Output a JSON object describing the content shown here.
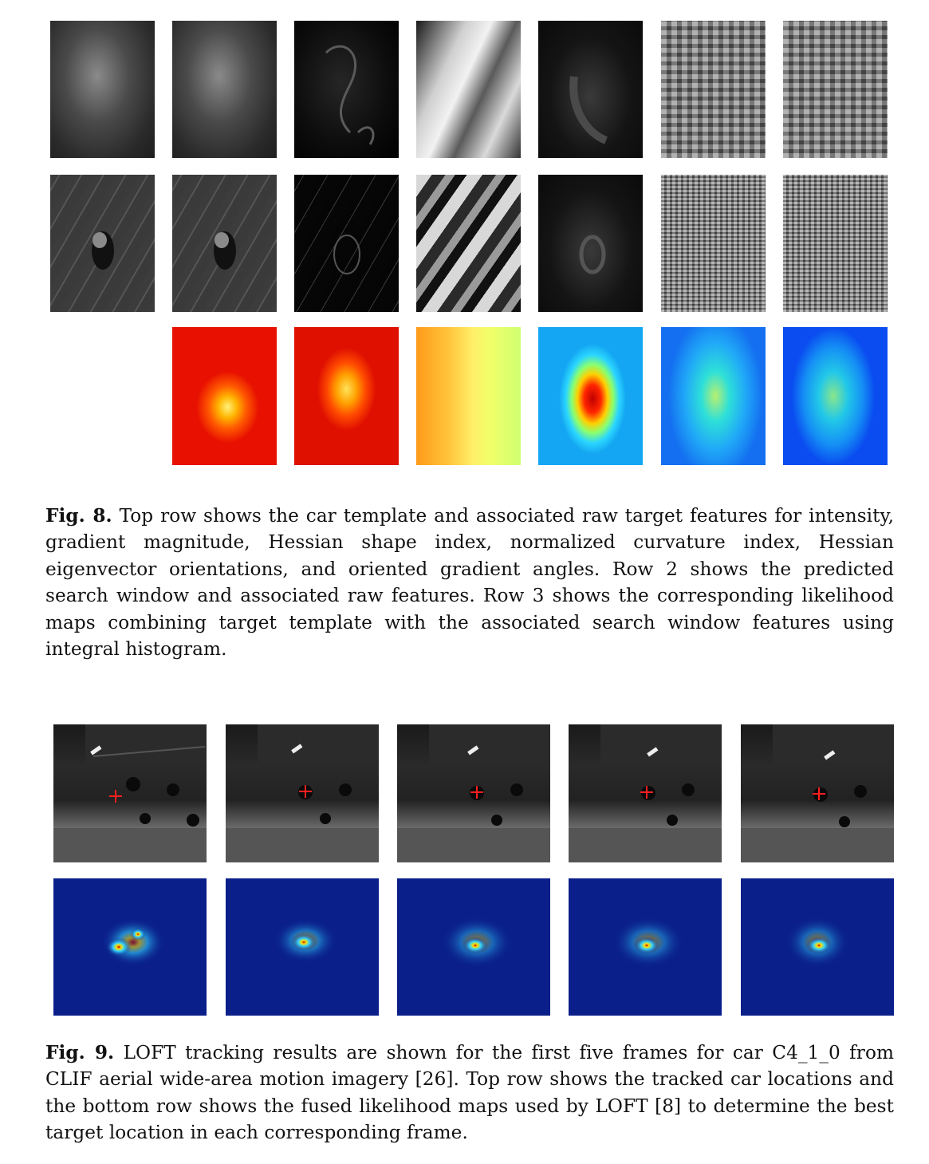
{
  "fig8": {
    "label": "Fig. 8.",
    "text": " Top row shows the car template and associated raw target features for intensity, gradient magnitude, Hessian shape index, normalized curvature index, Hessian eigenvector orientations, and oriented gradient angles. Row 2 shows the predicted search window and associated raw features. Row 3 shows the corresponding likelihood maps combining target template with the associated search window features using integral histogram."
  },
  "fig9": {
    "label": "Fig. 9.",
    "text": " LOFT tracking results are shown for the first five frames for car C4_1_0 from CLIF aerial wide-area motion imagery [26]. Top row shows the tracked car locations and the bottom row shows the fused likelihood maps used by LOFT [8] to determine the best target location in each corresponding frame."
  },
  "colors": {
    "tracker_cross": "#ff2020",
    "likelihood_background": "#0a1f8a"
  }
}
